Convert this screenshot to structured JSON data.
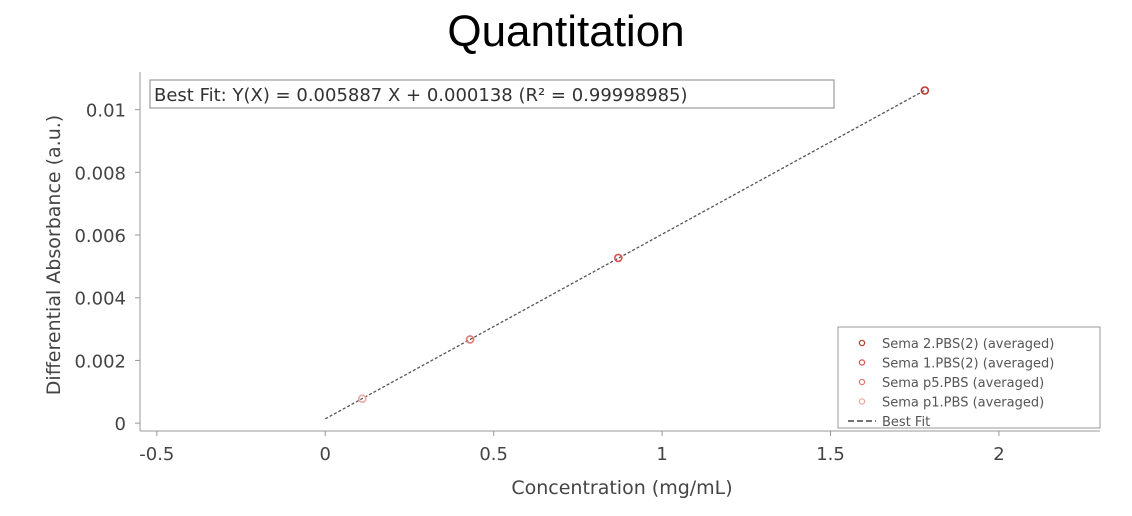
{
  "title": "Quantitation",
  "chart_data": {
    "type": "scatter",
    "title": "Quantitation",
    "xlabel": "Concentration (mg/mL)",
    "ylabel": "Differential Absorbance (a.u.)",
    "xlim": [
      -0.55,
      2.3
    ],
    "ylim": [
      -0.00025,
      0.0112
    ],
    "x_ticks": [
      -0.5,
      0,
      0.5,
      1,
      1.5,
      2
    ],
    "x_tick_labels": [
      "-0.5",
      "0",
      "0.5",
      "1",
      "1.5",
      "2"
    ],
    "y_ticks": [
      0,
      0.002,
      0.004,
      0.006,
      0.008,
      0.01
    ],
    "y_tick_labels": [
      "0",
      "0.002",
      "0.004",
      "0.006",
      "0.008",
      "0.01"
    ],
    "fit_annotation": "Best Fit:  Y(X) = 0.005887 X + 0.000138  (R² = 0.99998985)",
    "fit": {
      "name": "Best Fit",
      "slope": 0.005887,
      "intercept": 0.000138,
      "x_range": [
        0,
        1.78
      ],
      "color": "#555555",
      "dash": "dashed"
    },
    "series": [
      {
        "name": "Sema 2.PBS(2) (averaged)",
        "color": "#c0392b",
        "points": [
          [
            1.78,
            0.01061
          ]
        ]
      },
      {
        "name": "Sema 1.PBS(2) (averaged)",
        "color": "#d9534f",
        "points": [
          [
            0.87,
            0.00527
          ]
        ]
      },
      {
        "name": "Sema p5.PBS (averaged)",
        "color": "#e07b73",
        "points": [
          [
            0.43,
            0.00267
          ]
        ]
      },
      {
        "name": "Sema p1.PBS (averaged)",
        "color": "#eaa9a3",
        "points": [
          [
            0.11,
            0.00078
          ]
        ]
      }
    ],
    "legend_position": "bottom-right",
    "grid": false
  }
}
